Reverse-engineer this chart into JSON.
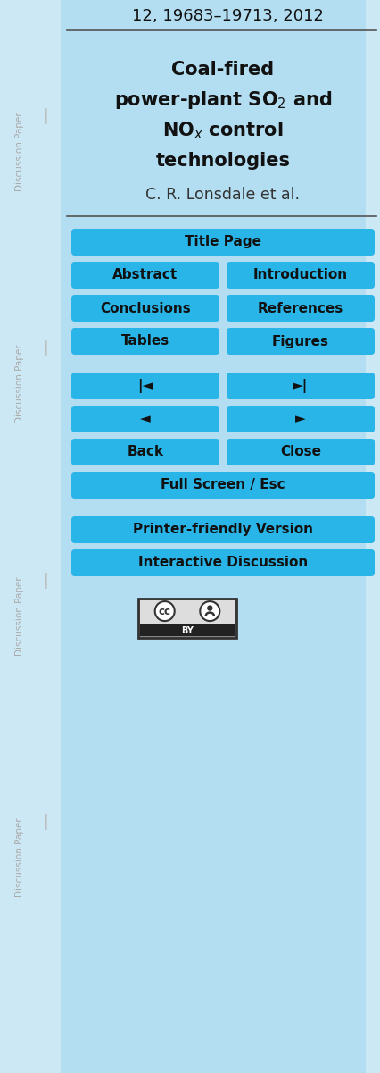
{
  "bg_color": "#b3ddf0",
  "sidebar_color": "#c5e5f0",
  "sidebar_text": "Discussion Paper",
  "button_color": "#29b5e8",
  "button_text_color": "#111111",
  "header_text": "12, 19683–19713, 2012",
  "title_line1": "Coal-fired",
  "title_line2": "power-plant SO$_2$ and",
  "title_line3": "NO$_x$ control",
  "title_line4": "technologies",
  "author": "C. R. Lonsdale et al.",
  "buttons_full": [
    "Title Page",
    "Full Screen / Esc",
    "Printer-friendly Version",
    "Interactive Discussion"
  ],
  "buttons_left": [
    "Abstract",
    "Conclusions",
    "Tables",
    "|◄",
    "◄",
    "Back"
  ],
  "buttons_right": [
    "Introduction",
    "References",
    "Figures",
    "►|",
    "►",
    "Close"
  ],
  "separator_color": "#555555"
}
